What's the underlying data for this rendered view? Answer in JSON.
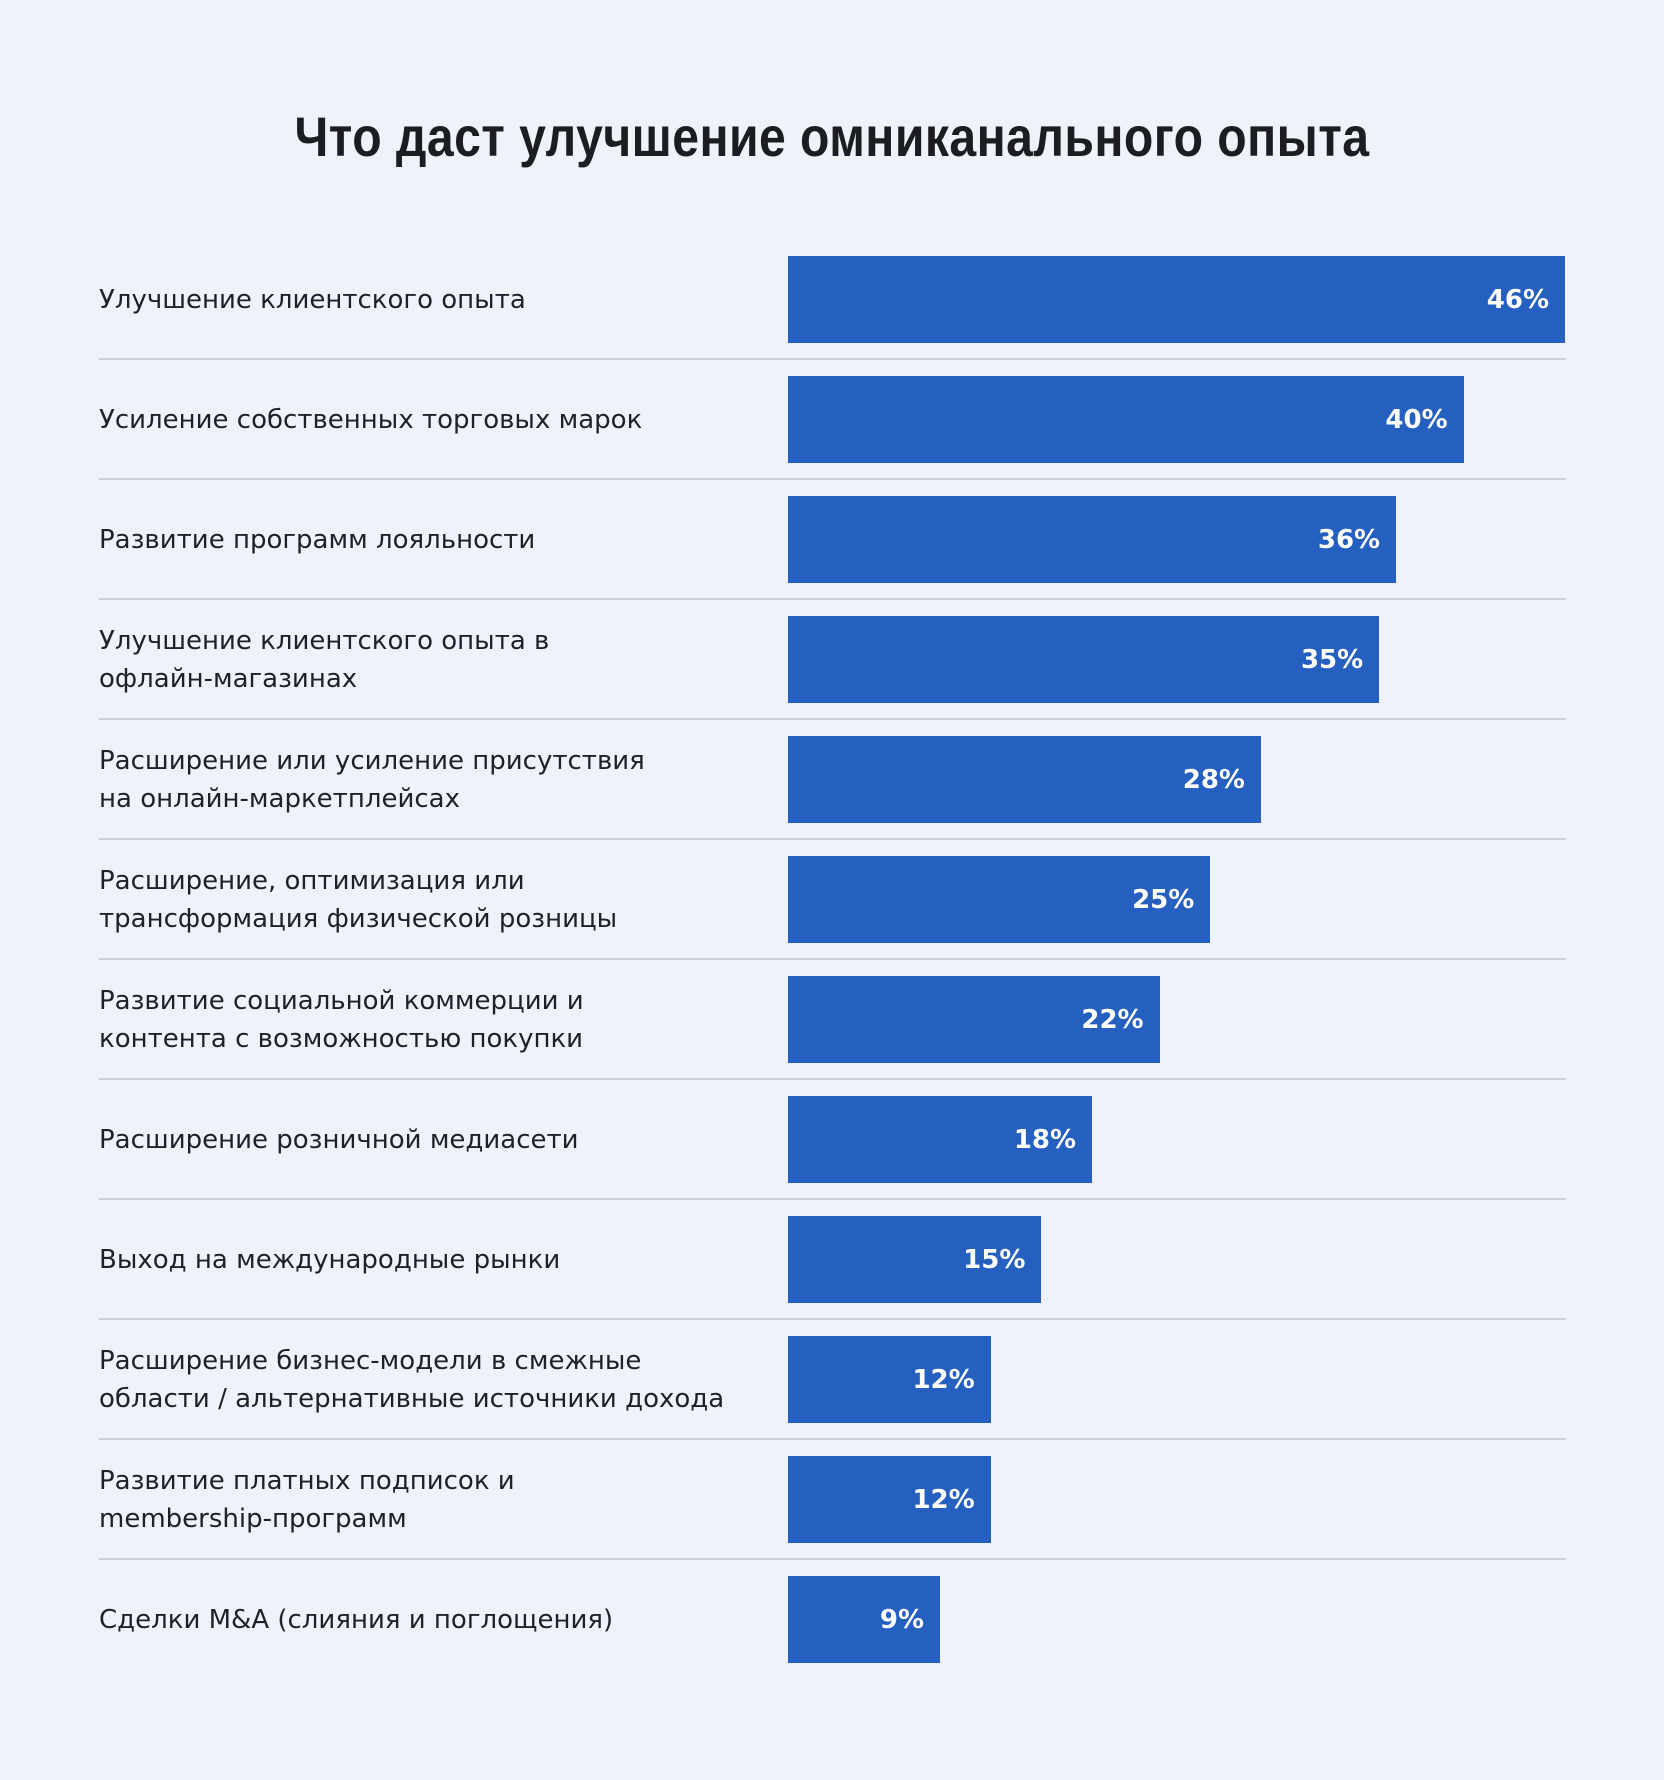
{
  "chart_data": {
    "type": "bar",
    "orientation": "horizontal",
    "title": "Что даст улучшение омниканального опыта",
    "categories": [
      "Улучшение клиентского опыта",
      "Усиление собственных торговых марок",
      "Развитие программ лояльности",
      "Улучшение клиентского опыта в\nофлайн-магазинах",
      "Расширение или усиление присутствия\nна онлайн-маркетплейсах",
      "Расширение, оптимизация или\nтрансформация физической розницы",
      "Развитие социальной коммерции и\nконтента с возможностью покупки",
      "Расширение розничной медиасети",
      "Выход на международные рынки",
      "Расширение бизнес-модели в смежные\nобласти / альтернативные источники дохода",
      "Развитие платных подписок и\nmembership-программ",
      "Сделки M&A (слияния и поглощения)"
    ],
    "values": [
      46,
      40,
      36,
      35,
      28,
      25,
      22,
      18,
      15,
      12,
      12,
      9
    ],
    "value_labels": [
      "46%",
      "40%",
      "36%",
      "35%",
      "28%",
      "25%",
      "22%",
      "18%",
      "15%",
      "12%",
      "12%",
      "9%"
    ],
    "color": "#255fbf"
  }
}
